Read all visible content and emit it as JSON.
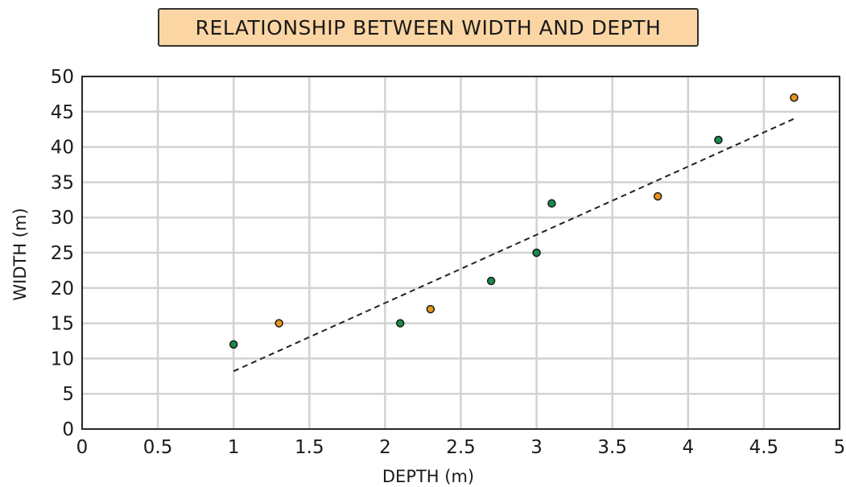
{
  "chart_data": {
    "type": "scatter",
    "title": "RELATIONSHIP BETWEEN WIDTH AND DEPTH",
    "xlabel": "DEPTH (m)",
    "ylabel": "WIDTH (m)",
    "xlim": [
      0,
      5
    ],
    "ylim": [
      0,
      50
    ],
    "x_ticks": [
      "0",
      "0.5",
      "1",
      "1.5",
      "2",
      "2.5",
      "3",
      "3.5",
      "4",
      "4.5",
      "5"
    ],
    "y_ticks": [
      "0",
      "5",
      "10",
      "15",
      "20",
      "25",
      "30",
      "35",
      "40",
      "45",
      "50"
    ],
    "grid": true,
    "series": [
      {
        "color": "#1a8a4a",
        "points": [
          {
            "x": 1.0,
            "y": 12
          },
          {
            "x": 2.1,
            "y": 15
          },
          {
            "x": 2.7,
            "y": 21
          },
          {
            "x": 3.0,
            "y": 25
          },
          {
            "x": 3.1,
            "y": 32
          },
          {
            "x": 4.2,
            "y": 41
          }
        ]
      },
      {
        "color": "#e8961e",
        "points": [
          {
            "x": 1.3,
            "y": 15
          },
          {
            "x": 2.3,
            "y": 17
          },
          {
            "x": 3.8,
            "y": 33
          },
          {
            "x": 4.7,
            "y": 47
          }
        ]
      }
    ],
    "trend_line": {
      "style": "dashed",
      "color": "#222222",
      "from": {
        "x": 1.0,
        "y": 8.2
      },
      "to": {
        "x": 4.7,
        "y": 44
      }
    }
  }
}
